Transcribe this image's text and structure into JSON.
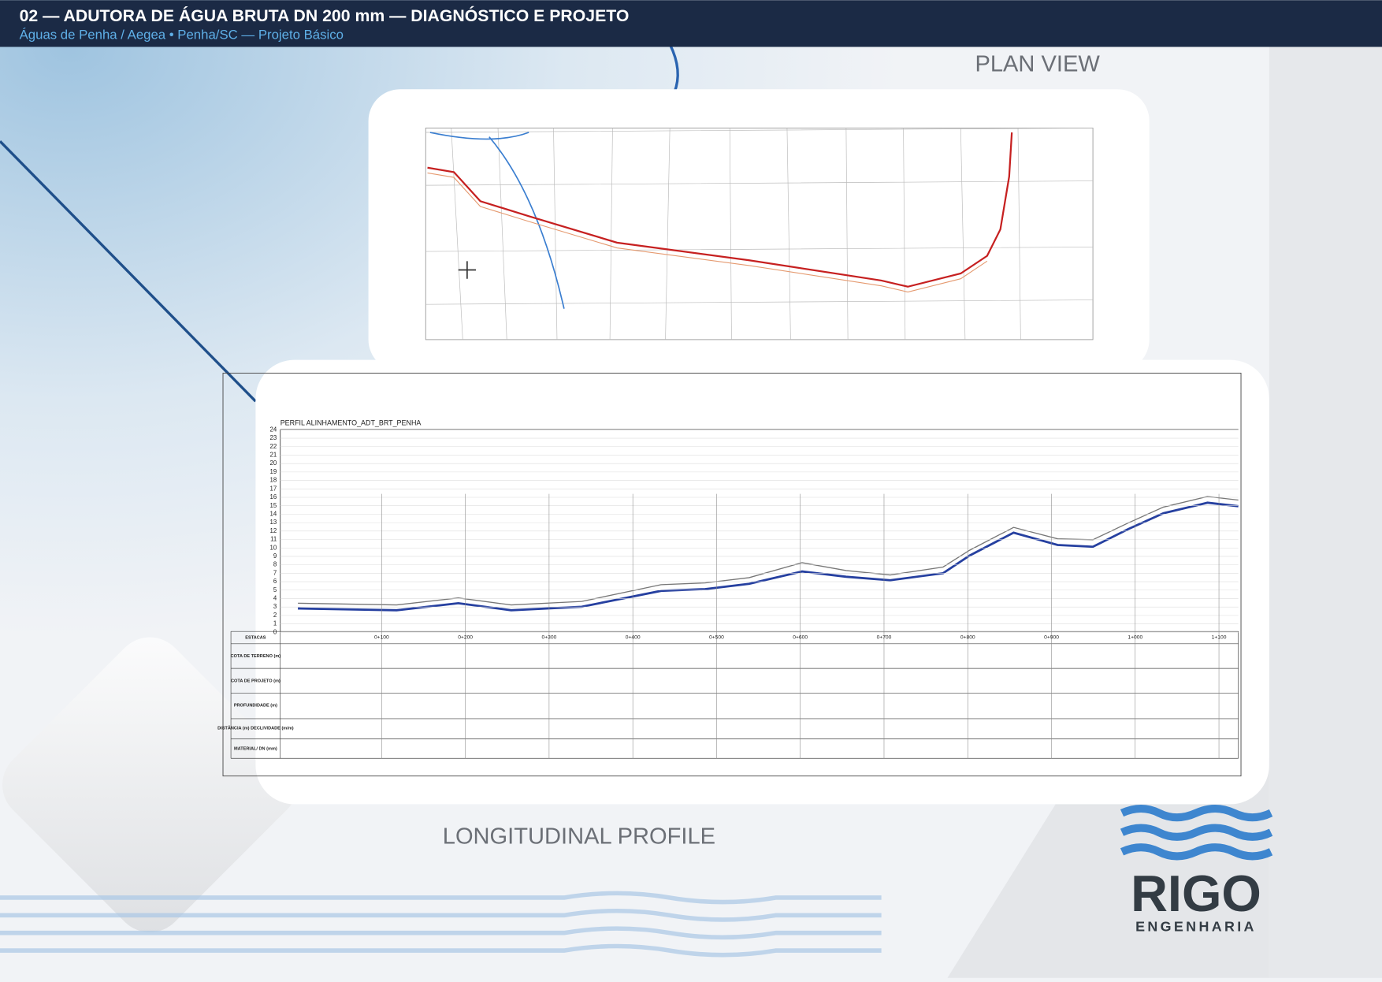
{
  "header": {
    "title": "02 — ADUTORA DE ÁGUA BRUTA DN 200 mm — DIAGNÓSTICO E PROJETO",
    "subtitle": "Águas de Penha / Aegea • Penha/SC — Projeto Básico"
  },
  "plan_view": {
    "caption": "PLAN VIEW"
  },
  "profile": {
    "caption": "LONGITUDINAL PROFILE",
    "title": "PERFIL ALINHAMENTO_ADT_BRT_PENHA",
    "elevations": [
      "0",
      "1",
      "2",
      "3",
      "4",
      "5",
      "6",
      "7",
      "8",
      "9",
      "10",
      "11",
      "12",
      "13",
      "14",
      "15",
      "16",
      "17",
      "18",
      "19",
      "20",
      "21",
      "22",
      "23",
      "24"
    ],
    "stations": [
      "0+100",
      "0+200",
      "0+300",
      "0+400",
      "0+500",
      "0+600",
      "0+700",
      "0+800",
      "0+900",
      "1+000",
      "1+100"
    ],
    "rows": [
      "ESTACAS",
      "COTA DE TERRENO (m)",
      "COTA DE PROJETO (m)",
      "PROFUNDIDADE (m)",
      "DISTÂNCIA (m) DECLIVIDADE (m/m)",
      "MATERIAL/ DN (mm)"
    ]
  },
  "logo": {
    "name": "RIGO",
    "tagline": "ENGENHARIA"
  }
}
